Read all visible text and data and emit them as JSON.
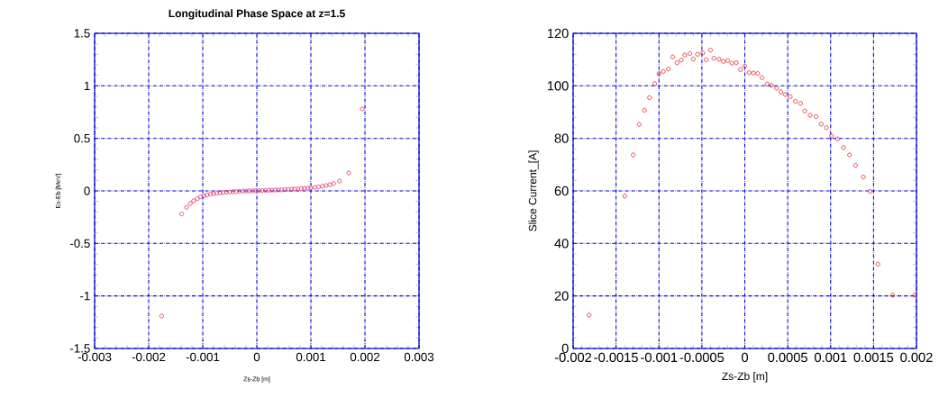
{
  "chart_data": [
    {
      "type": "scatter",
      "title": "Longitudinal Phase Space at z=1.5",
      "xlabel": "Zs-Zb [m]",
      "ylabel": "Es-Eb [MeV]",
      "marker": "circle",
      "color": "#e0245e",
      "grid": true,
      "x": [
        -0.00176,
        -0.00139,
        -0.0013,
        -0.00123,
        -0.00117,
        -0.0011,
        -0.00104,
        -0.00098,
        -0.00092,
        -0.00086,
        -0.0008,
        -0.00074,
        -0.00068,
        -0.00062,
        -0.00056,
        -0.0005,
        -0.00044,
        -0.00038,
        -0.00032,
        -0.00026,
        -0.0002,
        -0.00014,
        -8e-05,
        -2e-05,
        4e-05,
        0.0001,
        0.00016,
        0.00022,
        0.00028,
        0.00034,
        0.0004,
        0.00046,
        0.00052,
        0.00058,
        0.00064,
        0.0007,
        0.00076,
        0.00082,
        0.00088,
        0.00094,
        0.001,
        0.00107,
        0.00114,
        0.00121,
        0.00128,
        0.00135,
        0.00142,
        0.00153,
        0.0017,
        0.00195
      ],
      "values": [
        -1.19,
        -0.22,
        -0.157,
        -0.12,
        -0.094,
        -0.074,
        -0.057,
        -0.046,
        -0.038,
        -0.031,
        -0.026,
        -0.022,
        -0.019,
        -0.016,
        -0.013,
        -0.01,
        -0.008,
        -0.006,
        -0.004,
        -0.002,
        -0.001,
        0.0,
        0.001,
        0.002,
        0.003,
        0.004,
        0.005,
        0.006,
        0.007,
        0.008,
        0.009,
        0.01,
        0.012,
        0.014,
        0.016,
        0.018,
        0.02,
        0.022,
        0.024,
        0.026,
        0.029,
        0.033,
        0.038,
        0.044,
        0.051,
        0.06,
        0.07,
        0.094,
        0.17,
        0.78
      ],
      "xlim": [
        -0.003,
        0.003
      ],
      "ylim": [
        -1.5,
        1.5
      ],
      "xticks": [
        -0.003,
        -0.002,
        -0.001,
        0,
        0.001,
        0.002,
        0.003
      ],
      "yticks": [
        -1.5,
        -1,
        -0.5,
        0,
        0.5,
        1,
        1.5
      ]
    },
    {
      "type": "scatter",
      "xlabel": "Zs-Zb [m]",
      "ylabel": "Slice Current_[A]",
      "marker": "circle",
      "color": "#e41a1a",
      "grid": true,
      "x": [
        -0.001815,
        -0.0014,
        -0.0013,
        -0.00123,
        -0.00117,
        -0.00111,
        -0.00105,
        -0.001,
        -0.00095,
        -0.00089,
        -0.00084,
        -0.00079,
        -0.00074,
        -0.0007,
        -0.00064,
        -0.0006,
        -0.00055,
        -0.00049,
        -0.00045,
        -0.0004,
        -0.00036,
        -0.0003,
        -0.00025,
        -0.0002,
        -0.00015,
        -0.0001,
        -5e-05,
        0,
        5e-05,
        0.0001,
        0.00015,
        0.0002,
        0.00026,
        0.00031,
        0.00037,
        0.00042,
        0.00047,
        0.00053,
        0.00059,
        0.00065,
        0.0007,
        0.00076,
        0.00083,
        0.00089,
        0.00095,
        0.00101,
        0.00108,
        0.00115,
        0.00122,
        0.00129,
        0.00138,
        0.00146,
        0.00155,
        0.00172,
        0.00198
      ],
      "values": [
        12.7,
        58,
        73.7,
        85.3,
        90.7,
        95.5,
        100.8,
        104.6,
        105.5,
        106.4,
        111,
        108.8,
        109.8,
        111.7,
        112.3,
        110.2,
        112,
        112.5,
        109.9,
        113.6,
        110.5,
        110.1,
        109.3,
        109.6,
        108.6,
        108.8,
        106.2,
        107.5,
        105,
        104.9,
        104.7,
        103.1,
        100.7,
        100.2,
        99.1,
        97.7,
        96.7,
        95.9,
        94.1,
        93.3,
        90.4,
        88.8,
        88.3,
        85.4,
        84.1,
        80.9,
        79.8,
        76.5,
        73.7,
        69.7,
        65.3,
        59.8,
        32.1,
        20.3,
        20.3
      ],
      "xlim": [
        -0.002,
        0.002
      ],
      "ylim": [
        0,
        120
      ],
      "xticks": [
        -0.002,
        -0.0015,
        -0.001,
        -0.0005,
        0,
        0.0005,
        0.001,
        0.0015,
        0.002
      ],
      "yticks": [
        0,
        20,
        40,
        60,
        80,
        100,
        120
      ]
    }
  ]
}
